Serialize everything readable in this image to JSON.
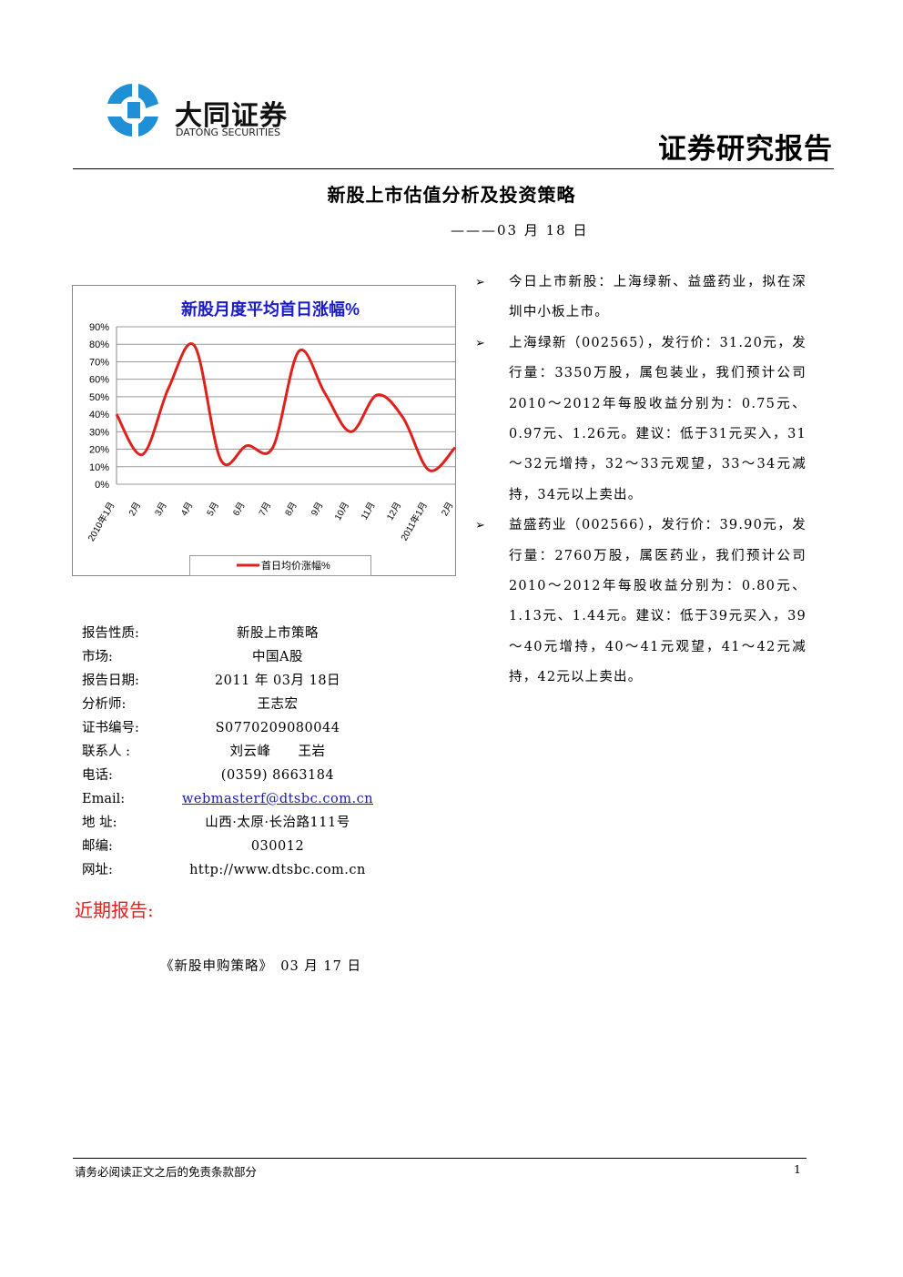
{
  "header": {
    "logo_cn": "大同证券",
    "logo_en": "DATONG SECURITIES",
    "report_type": "证券研究报告"
  },
  "title": "新股上市估值分析及投资策略",
  "date": "———03 月 18 日",
  "chart_data": {
    "type": "line",
    "title": "新股月度平均首日涨幅%",
    "categories": [
      "2010年1月",
      "2月",
      "3月",
      "4月",
      "5月",
      "6月",
      "7月",
      "8月",
      "9月",
      "10月",
      "11月",
      "12月",
      "2011年1月",
      "2月"
    ],
    "series": [
      {
        "name": "首日均价涨幅%",
        "color": "#e0201b",
        "values": [
          40,
          17,
          55,
          79,
          14,
          22,
          21,
          76,
          52,
          30,
          51,
          38,
          8,
          21
        ]
      }
    ],
    "ylim": [
      0,
      90
    ],
    "yticks": [
      {
        "value": 0,
        "label": "0%"
      },
      {
        "value": 10,
        "label": "10%"
      },
      {
        "value": 20,
        "label": "20%"
      },
      {
        "value": 30,
        "label": "30%"
      },
      {
        "value": 40,
        "label": "40%"
      },
      {
        "value": 50,
        "label": "50%"
      },
      {
        "value": 60,
        "label": "60%"
      },
      {
        "value": 70,
        "label": "70%"
      },
      {
        "value": 80,
        "label": "80%"
      },
      {
        "value": 90,
        "label": "90%"
      }
    ],
    "grid": true,
    "legend": "bottom"
  },
  "bullets": [
    "今日上市新股：上海绿新、益盛药业，拟在深圳中小板上市。",
    "上海绿新（002565），发行价：31.20元，发行量：3350万股，属包装业，我们预计公司2010～2012年每股收益分别为：0.75元、0.97元、1.26元。建议：低于31元买入，31～32元增持，32～33元观望，33～34元减持，34元以上卖出。",
    "益盛药业（002566），发行价：39.90元，发行量：2760万股，属医药业，我们预计公司2010～2012年每股收益分别为：0.80元、1.13元、1.44元。建议：低于39元买入，39～40元增持，40～41元观望，41～42元减持，42元以上卖出。"
  ],
  "info": [
    [
      "报告性质:",
      "新股上市策略"
    ],
    [
      "市场:",
      "中国A股"
    ],
    [
      "报告日期:",
      "2011 年 03月 18日"
    ],
    [
      "分析师:",
      "王志宏"
    ],
    [
      "证书编号:",
      "S0770209080044"
    ],
    [
      "联系人 :",
      "刘云峰　　王岩"
    ],
    [
      "电话:",
      "(0359) 8663184"
    ],
    [
      "Email:",
      "webmasterf@dtsbc.com.cn"
    ],
    [
      "地 址:",
      "山西·太原·长治路111号"
    ],
    [
      "邮编:",
      "030012"
    ],
    [
      "网址:",
      "http://www.dtsbc.com.cn"
    ]
  ],
  "recent": {
    "heading": "近期报告:",
    "items": [
      "《新股申购策略》　03 月 17 日"
    ]
  },
  "footer": {
    "disclaimer": "请务必阅读正文之后的免责条款部分",
    "page": "1"
  }
}
